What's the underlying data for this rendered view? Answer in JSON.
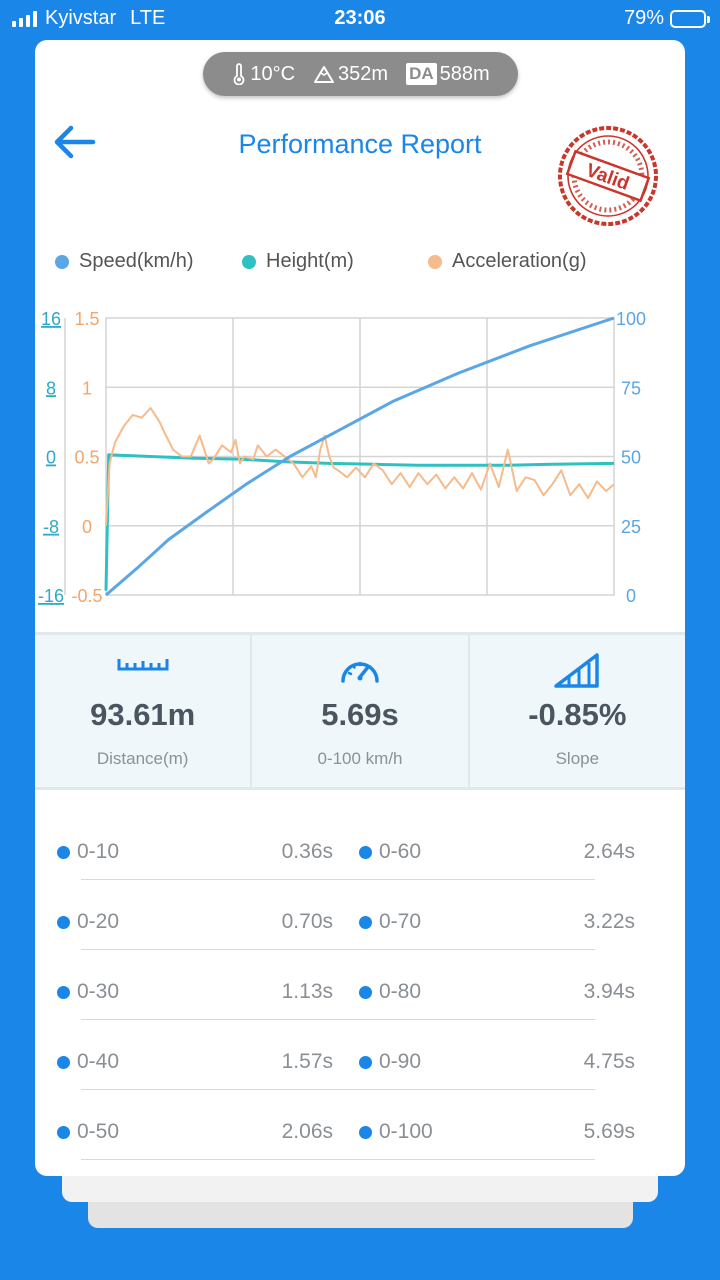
{
  "status_bar": {
    "carrier": "Kyivstar",
    "network": "LTE",
    "time": "23:06",
    "battery": "79%",
    "battery_level": 0.79
  },
  "conditions": {
    "temperature": "10°C",
    "altitude": "352m",
    "da_label": "DA",
    "density_altitude": "588m"
  },
  "header": {
    "title": "Performance Report",
    "stamp_text": "Valid"
  },
  "legend": [
    {
      "label": "Speed(km/h)",
      "color": "#5aa6e6"
    },
    {
      "label": "Height(m)",
      "color": "#2fc1c1"
    },
    {
      "label": "Acceleration(g)",
      "color": "#f7ba8a"
    }
  ],
  "chart_data": {
    "type": "line",
    "axes": {
      "height_ticks": [
        "16",
        "8",
        "0",
        "-8",
        "-16"
      ],
      "accel_ticks": [
        "1.5",
        "1",
        "0.5",
        "0",
        "-0.5"
      ],
      "speed_ticks": [
        "100",
        "75",
        "50",
        "25",
        "0"
      ],
      "height_range": [
        -16,
        16
      ],
      "accel_range": [
        -0.5,
        1.5
      ],
      "speed_range": [
        0,
        100
      ],
      "time_range": [
        0,
        5.69
      ],
      "grid": true
    },
    "series": [
      {
        "name": "Speed(km/h)",
        "color": "#5aa6e6",
        "x": [
          0,
          0.36,
          0.7,
          1.13,
          1.57,
          2.06,
          2.64,
          3.22,
          3.94,
          4.75,
          5.69
        ],
        "y": [
          0,
          10,
          20,
          30,
          40,
          50,
          60,
          70,
          80,
          90,
          100
        ]
      },
      {
        "name": "Height(m)",
        "color": "#2fc1c1",
        "x": [
          0,
          0.03,
          0.5,
          1.0,
          1.5,
          2.0,
          2.5,
          3.0,
          3.5,
          4.0,
          4.5,
          5.0,
          5.69
        ],
        "y": [
          -15.5,
          0.2,
          0.0,
          -0.2,
          -0.3,
          -0.6,
          -0.8,
          -0.9,
          -1.0,
          -1.0,
          -1.0,
          -0.9,
          -0.8
        ]
      },
      {
        "name": "Acceleration(g)",
        "color": "#f7ba8a",
        "x": [
          0,
          0.04,
          0.1,
          0.2,
          0.3,
          0.4,
          0.5,
          0.6,
          0.65,
          0.75,
          0.85,
          0.95,
          1.05,
          1.15,
          1.2,
          1.3,
          1.4,
          1.45,
          1.5,
          1.55,
          1.65,
          1.7,
          1.8,
          1.9,
          2.0,
          2.1,
          2.2,
          2.3,
          2.35,
          2.4,
          2.45,
          2.5,
          2.55,
          2.6,
          2.7,
          2.8,
          2.9,
          3.0,
          3.1,
          3.2,
          3.3,
          3.4,
          3.5,
          3.6,
          3.7,
          3.8,
          3.9,
          4.0,
          4.1,
          4.2,
          4.3,
          4.4,
          4.5,
          4.6,
          4.7,
          4.8,
          4.9,
          5.0,
          5.1,
          5.2,
          5.3,
          5.4,
          5.5,
          5.6,
          5.69
        ],
        "y": [
          0.0,
          0.45,
          0.6,
          0.72,
          0.8,
          0.78,
          0.85,
          0.75,
          0.68,
          0.55,
          0.5,
          0.5,
          0.65,
          0.45,
          0.48,
          0.58,
          0.53,
          0.62,
          0.45,
          0.5,
          0.48,
          0.58,
          0.5,
          0.55,
          0.5,
          0.45,
          0.35,
          0.43,
          0.35,
          0.55,
          0.65,
          0.5,
          0.42,
          0.4,
          0.35,
          0.42,
          0.35,
          0.45,
          0.4,
          0.3,
          0.38,
          0.28,
          0.38,
          0.3,
          0.37,
          0.27,
          0.35,
          0.27,
          0.38,
          0.26,
          0.45,
          0.28,
          0.55,
          0.25,
          0.35,
          0.33,
          0.22,
          0.3,
          0.4,
          0.22,
          0.3,
          0.2,
          0.32,
          0.25,
          0.3
        ]
      }
    ]
  },
  "stats": [
    {
      "icon": "ruler-icon",
      "value": "93.61m",
      "label": "Distance(m)"
    },
    {
      "icon": "speedometer-icon",
      "value": "5.69s",
      "label": "0-100 km/h"
    },
    {
      "icon": "slope-icon",
      "value": "-0.85%",
      "label": "Slope"
    }
  ],
  "splits": [
    {
      "left_label": "0-10",
      "left_time": "0.36s",
      "right_label": "0-60",
      "right_time": "2.64s"
    },
    {
      "left_label": "0-20",
      "left_time": "0.70s",
      "right_label": "0-70",
      "right_time": "3.22s"
    },
    {
      "left_label": "0-30",
      "left_time": "1.13s",
      "right_label": "0-80",
      "right_time": "3.94s"
    },
    {
      "left_label": "0-40",
      "left_time": "1.57s",
      "right_label": "0-90",
      "right_time": "4.75s"
    },
    {
      "left_label": "0-50",
      "left_time": "2.06s",
      "right_label": "0-100",
      "right_time": "5.69s"
    }
  ],
  "colors": {
    "accent": "#1a86e8",
    "stamp": "#c9362c"
  }
}
